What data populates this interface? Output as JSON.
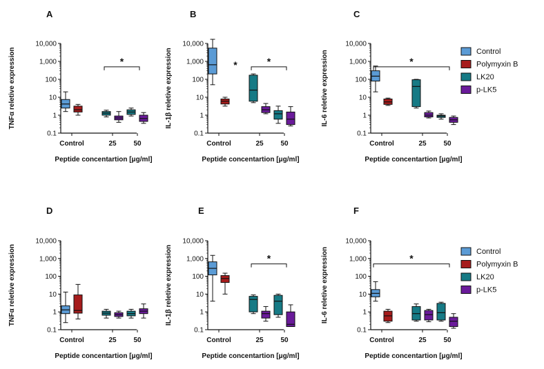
{
  "chart_data": [
    {
      "type": "boxplot",
      "panel": "A",
      "ylabel": "TNFα reletive expression",
      "xlabel": "Peptide concentartion [μg/ml]",
      "yscale": "log",
      "ylim": [
        0.1,
        10000
      ],
      "yticks": [
        "0.1",
        "1",
        "10",
        "100",
        "1,000",
        "10,000"
      ],
      "categories": [
        "Control",
        "25",
        "50"
      ],
      "boxes": [
        {
          "group": "Control",
          "series": "Control",
          "min": 1.6,
          "q1": 2.5,
          "median": 4.2,
          "q3": 7.5,
          "max": 20
        },
        {
          "group": "Control",
          "series": "Polymyxin B",
          "min": 1.0,
          "q1": 1.5,
          "median": 2.0,
          "q3": 3.2,
          "max": 4.0
        },
        {
          "group": "25",
          "series": "LK20",
          "min": 0.8,
          "q1": 1.0,
          "median": 1.3,
          "q3": 1.6,
          "max": 1.9
        },
        {
          "group": "25",
          "series": "p-LK5",
          "min": 0.4,
          "q1": 0.55,
          "median": 0.7,
          "q3": 0.9,
          "max": 1.6
        },
        {
          "group": "50",
          "series": "LK20",
          "min": 0.9,
          "q1": 1.1,
          "median": 1.5,
          "q3": 2.0,
          "max": 2.5
        },
        {
          "group": "50",
          "series": "p-LK5",
          "min": 0.35,
          "q1": 0.45,
          "median": 0.65,
          "q3": 1.0,
          "max": 1.4
        }
      ],
      "significance": [
        {
          "from": "25",
          "to": "50",
          "y": 500,
          "label": "*"
        }
      ]
    },
    {
      "type": "boxplot",
      "panel": "B",
      "ylabel": "IL-1β reletive expression",
      "xlabel": "Peptide concentartion [μg/ml]",
      "yscale": "log",
      "ylim": [
        0.1,
        10000
      ],
      "yticks": [
        "0.1",
        "1",
        "10",
        "100",
        "1,000",
        "10,000"
      ],
      "categories": [
        "Control",
        "25",
        "50"
      ],
      "boxes": [
        {
          "group": "Control",
          "series": "Control",
          "min": 50,
          "q1": 200,
          "median": 650,
          "q3": 5500,
          "max": 17000
        },
        {
          "group": "Control",
          "series": "Polymyxin B",
          "min": 3.2,
          "q1": 4.2,
          "median": 6.0,
          "q3": 8.0,
          "max": 10
        },
        {
          "group": "25",
          "series": "LK20",
          "min": 5,
          "q1": 6,
          "median": 25,
          "q3": 170,
          "max": 200
        },
        {
          "group": "25",
          "series": "p-LK5",
          "min": 1.2,
          "q1": 1.4,
          "median": 2.0,
          "q3": 3.0,
          "max": 4.5
        },
        {
          "group": "50",
          "series": "LK20",
          "min": 0.35,
          "q1": 0.6,
          "median": 1.2,
          "q3": 1.8,
          "max": 3.2
        },
        {
          "group": "50",
          "series": "p-LK5",
          "min": 0.25,
          "q1": 0.3,
          "median": 0.6,
          "q3": 1.5,
          "max": 3.0
        }
      ],
      "significance": [
        {
          "marker_for": "Control",
          "y": 700,
          "label": "*"
        },
        {
          "from": "25",
          "to": "50",
          "y": 500,
          "label": "*"
        }
      ]
    },
    {
      "type": "boxplot",
      "panel": "C",
      "ylabel": "IL-6 reletive expression",
      "xlabel": "Peptide concentartion [μg/ml]",
      "yscale": "log",
      "ylim": [
        0.1,
        10000
      ],
      "yticks": [
        "0.1",
        "1",
        "10",
        "100",
        "1,000",
        "10,000"
      ],
      "categories": [
        "Control",
        "25",
        "50"
      ],
      "boxes": [
        {
          "group": "Control",
          "series": "Control",
          "min": 20,
          "q1": 80,
          "median": 150,
          "q3": 300,
          "max": 550
        },
        {
          "group": "Control",
          "series": "Polymyxin B",
          "min": 3.5,
          "q1": 4.0,
          "median": 5.5,
          "q3": 8.0,
          "max": 9.0
        },
        {
          "group": "25",
          "series": "LK20",
          "min": 2.5,
          "q1": 3.0,
          "median": 40,
          "q3": 95,
          "max": 100
        },
        {
          "group": "25",
          "series": "p-LK5",
          "min": 0.7,
          "q1": 0.8,
          "median": 1.0,
          "q3": 1.4,
          "max": 1.7
        },
        {
          "group": "50",
          "series": "LK20",
          "min": 0.6,
          "q1": 0.75,
          "median": 0.9,
          "q3": 1.0,
          "max": 1.2
        },
        {
          "group": "50",
          "series": "p-LK5",
          "min": 0.3,
          "q1": 0.4,
          "median": 0.55,
          "q3": 0.75,
          "max": 0.9
        }
      ],
      "significance": [
        {
          "from": "Control",
          "to": "50",
          "y": 500,
          "label": "*"
        }
      ]
    },
    {
      "type": "boxplot",
      "panel": "D",
      "ylabel": "TNFα reletive expression",
      "xlabel": "Peptide concentartion [μg/ml]",
      "yscale": "log",
      "ylim": [
        0.1,
        10000
      ],
      "yticks": [
        "0.1",
        "1",
        "10",
        "100",
        "1,000",
        "10,000"
      ],
      "categories": [
        "Control",
        "25",
        "50"
      ],
      "boxes": [
        {
          "group": "Control",
          "series": "Control",
          "min": 0.25,
          "q1": 0.8,
          "median": 1.3,
          "q3": 2.2,
          "max": 13
        },
        {
          "group": "Control",
          "series": "Polymyxin B",
          "min": 0.4,
          "q1": 0.85,
          "median": 1.2,
          "q3": 9.0,
          "max": 35
        },
        {
          "group": "25",
          "series": "LK20",
          "min": 0.45,
          "q1": 0.65,
          "median": 0.85,
          "q3": 1.1,
          "max": 1.4
        },
        {
          "group": "25",
          "series": "p-LK5",
          "min": 0.45,
          "q1": 0.55,
          "median": 0.7,
          "q3": 0.9,
          "max": 1.1
        },
        {
          "group": "50",
          "series": "LK20",
          "min": 0.45,
          "q1": 0.6,
          "median": 0.8,
          "q3": 1.1,
          "max": 1.4
        },
        {
          "group": "50",
          "series": "p-LK5",
          "min": 0.45,
          "q1": 0.8,
          "median": 1.1,
          "q3": 1.5,
          "max": 2.8
        }
      ],
      "significance": []
    },
    {
      "type": "boxplot",
      "panel": "E",
      "ylabel": "IL-1β reletive expression",
      "xlabel": "Peptide concentartion [μg/ml]",
      "yscale": "log",
      "ylim": [
        0.1,
        10000
      ],
      "yticks": [
        "0.1",
        "1",
        "10",
        "100",
        "1,000",
        "10,000"
      ],
      "categories": [
        "Control",
        "25",
        "50"
      ],
      "boxes": [
        {
          "group": "Control",
          "series": "Control",
          "min": 4,
          "q1": 120,
          "median": 280,
          "q3": 650,
          "max": 1500
        },
        {
          "group": "Control",
          "series": "Polymyxin B",
          "min": 10,
          "q1": 45,
          "median": 75,
          "q3": 110,
          "max": 150
        },
        {
          "group": "25",
          "series": "LK20",
          "min": 0.8,
          "q1": 1.0,
          "median": 5.0,
          "q3": 7.5,
          "max": 9
        },
        {
          "group": "25",
          "series": "p-LK5",
          "min": 0.3,
          "q1": 0.45,
          "median": 0.8,
          "q3": 1.1,
          "max": 2.0
        },
        {
          "group": "50",
          "series": "LK20",
          "min": 0.5,
          "q1": 0.7,
          "median": 4.0,
          "q3": 8.5,
          "max": 10
        },
        {
          "group": "50",
          "series": "p-LK5",
          "min": 0.15,
          "q1": 0.15,
          "median": 0.2,
          "q3": 1.0,
          "max": 2.5
        }
      ],
      "significance": [
        {
          "from": "25",
          "to": "50",
          "y": 500,
          "label": "*"
        }
      ]
    },
    {
      "type": "boxplot",
      "panel": "F",
      "ylabel": "IL-6 reletive expression",
      "xlabel": "Peptide concentartion [μg/ml]",
      "yscale": "log",
      "ylim": [
        0.1,
        10000
      ],
      "yticks": [
        "0.1",
        "1",
        "10",
        "100",
        "1,000",
        "10,000"
      ],
      "categories": [
        "Control",
        "25",
        "50"
      ],
      "boxes": [
        {
          "group": "Control",
          "series": "Control",
          "min": 4,
          "q1": 7,
          "median": 11,
          "q3": 18,
          "max": 50
        },
        {
          "group": "Control",
          "series": "Polymyxin B",
          "min": 0.25,
          "q1": 0.3,
          "median": 0.6,
          "q3": 1.1,
          "max": 1.4
        },
        {
          "group": "25",
          "series": "LK20",
          "min": 0.3,
          "q1": 0.35,
          "median": 0.8,
          "q3": 2.0,
          "max": 2.8
        },
        {
          "group": "25",
          "series": "p-LK5",
          "min": 0.28,
          "q1": 0.35,
          "median": 0.7,
          "q3": 1.2,
          "max": 1.4
        },
        {
          "group": "50",
          "series": "LK20",
          "min": 0.3,
          "q1": 0.35,
          "median": 0.9,
          "q3": 3.0,
          "max": 3.5
        },
        {
          "group": "50",
          "series": "p-LK5",
          "min": 0.12,
          "q1": 0.15,
          "median": 0.3,
          "q3": 0.5,
          "max": 0.8
        }
      ],
      "significance": [
        {
          "from": "Control",
          "to": "50",
          "y": 500,
          "label": "*"
        }
      ]
    }
  ],
  "legend": {
    "entries": [
      {
        "name": "Control",
        "color": "#5b9bd5"
      },
      {
        "name": "Polymyxin B",
        "color": "#a61c1c"
      },
      {
        "name": "LK20",
        "color": "#167a85"
      },
      {
        "name": "p-LK5",
        "color": "#6a1b9a"
      }
    ]
  }
}
